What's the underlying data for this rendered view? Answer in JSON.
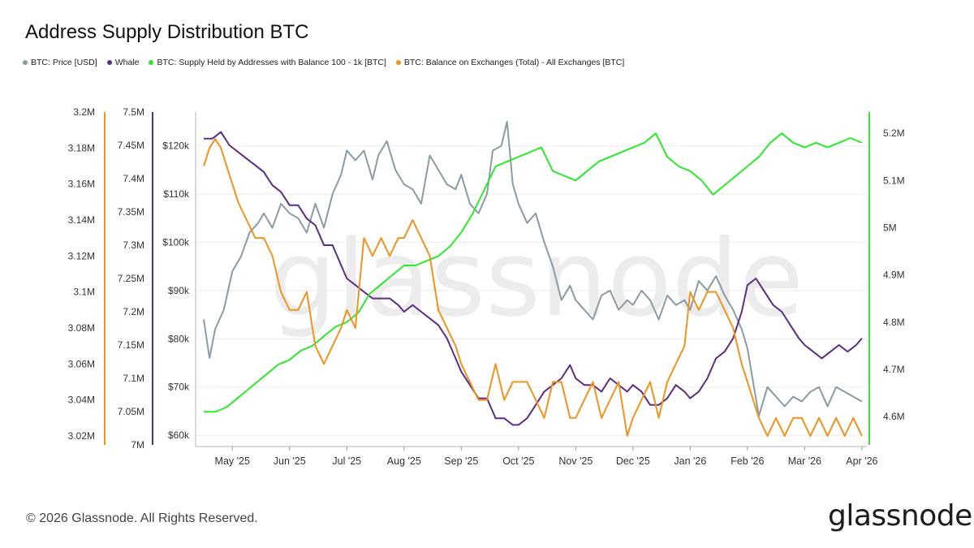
{
  "title": "Address Supply Distribution BTC",
  "footer": "© 2026 Glassnode. All Rights Reserved.",
  "brand": "glassnode",
  "watermark": "glassnode",
  "colors": {
    "price": "#8a9ba3",
    "whale": "#5b2d83",
    "supply": "#2de82d",
    "exchange": "#f0921e"
  },
  "legend": [
    {
      "label": "BTC: Price [USD]",
      "color": "#8a9ba3"
    },
    {
      "label": "Whale",
      "color": "#5b2d83"
    },
    {
      "label": "BTC: Supply Held by Addresses with Balance 100 - 1k [BTC]",
      "color": "#2de82d"
    },
    {
      "label": "BTC: Balance on Exchanges (Total) - All Exchanges [BTC]",
      "color": "#f0921e"
    }
  ],
  "chart_data": {
    "type": "line",
    "x_labels": [
      "May '25",
      "Jun '25",
      "Jul '25",
      "Aug '25",
      "Sep '25",
      "Oct '25",
      "Nov '25",
      "Dec '25",
      "Jan '26",
      "Feb '26",
      "Mar '26",
      "Apr '26"
    ],
    "x_range": [
      -0.5,
      11.03
    ],
    "axes": {
      "exchange": {
        "range": [
          3.015,
          3.2
        ],
        "ticks": [
          "3.02M",
          "3.04M",
          "3.06M",
          "3.08M",
          "3.1M",
          "3.12M",
          "3.14M",
          "3.16M",
          "3.18M",
          "3.2M"
        ],
        "tick_values": [
          3.02,
          3.04,
          3.06,
          3.08,
          3.1,
          3.12,
          3.14,
          3.16,
          3.18,
          3.2
        ]
      },
      "whale": {
        "range": [
          7.0,
          7.5
        ],
        "ticks": [
          "7M",
          "7.05M",
          "7.1M",
          "7.15M",
          "7.2M",
          "7.25M",
          "7.3M",
          "7.35M",
          "7.4M",
          "7.45M",
          "7.5M"
        ],
        "tick_values": [
          7.0,
          7.05,
          7.1,
          7.15,
          7.2,
          7.25,
          7.3,
          7.35,
          7.4,
          7.45,
          7.5
        ]
      },
      "price": {
        "range": [
          58,
          127
        ],
        "ticks": [
          "$60k",
          "$70k",
          "$80k",
          "$90k",
          "$100k",
          "$110k",
          "$120k"
        ],
        "tick_values": [
          60,
          70,
          80,
          90,
          100,
          110,
          120
        ]
      },
      "supply": {
        "range": [
          4.54,
          5.245
        ],
        "ticks": [
          "4.6M",
          "4.7M",
          "4.8M",
          "4.9M",
          "5M",
          "5.1M",
          "5.2M"
        ],
        "tick_values": [
          4.6,
          4.7,
          4.8,
          4.9,
          5.0,
          5.1,
          5.2
        ]
      }
    },
    "series": [
      {
        "name": "BTC: Price [USD]",
        "axis": "price",
        "unit": "k USD",
        "x": [
          -0.5,
          -0.4,
          -0.3,
          -0.15,
          0,
          0.15,
          0.3,
          0.45,
          0.55,
          0.7,
          0.85,
          1,
          1.15,
          1.3,
          1.45,
          1.6,
          1.75,
          1.9,
          2,
          2.15,
          2.3,
          2.45,
          2.55,
          2.7,
          2.85,
          3,
          3.15,
          3.3,
          3.45,
          3.6,
          3.75,
          3.9,
          4,
          4.15,
          4.3,
          4.45,
          4.55,
          4.7,
          4.8,
          4.9,
          5,
          5.15,
          5.3,
          5.45,
          5.6,
          5.75,
          5.9,
          6,
          6.15,
          6.3,
          6.45,
          6.6,
          6.75,
          6.9,
          7,
          7.15,
          7.3,
          7.45,
          7.6,
          7.75,
          7.9,
          8,
          8.15,
          8.3,
          8.45,
          8.6,
          8.75,
          8.9,
          9,
          9.1,
          9.2,
          9.35,
          9.5,
          9.65,
          9.8,
          9.95,
          10.1,
          10.25,
          10.4,
          10.55,
          10.7,
          10.85,
          11
        ],
        "y": [
          84,
          76,
          82,
          86,
          94,
          97,
          102,
          104,
          106,
          103,
          108,
          106,
          105,
          102,
          108,
          103,
          110,
          114,
          119,
          117,
          119,
          113,
          118,
          121,
          115,
          112,
          111,
          108,
          118,
          115,
          112,
          111,
          114,
          108,
          106,
          110,
          119,
          120,
          125,
          112,
          108,
          104,
          106,
          100,
          95,
          88,
          91,
          88,
          86,
          84,
          89,
          90,
          86,
          88,
          87,
          90,
          88,
          84,
          89,
          87,
          88,
          86,
          92,
          90,
          93,
          89,
          86,
          82,
          78,
          71,
          64,
          70,
          68,
          66,
          68,
          67,
          69,
          70,
          66,
          70,
          69,
          68,
          67
        ]
      },
      {
        "name": "Whale",
        "axis": "whale",
        "unit": "M BTC",
        "x": [
          -0.5,
          -0.35,
          -0.2,
          -0.05,
          0.1,
          0.25,
          0.4,
          0.55,
          0.7,
          0.85,
          1,
          1.15,
          1.3,
          1.45,
          1.6,
          1.75,
          1.9,
          2,
          2.15,
          2.3,
          2.45,
          2.6,
          2.75,
          2.9,
          3,
          3.15,
          3.3,
          3.45,
          3.6,
          3.75,
          3.9,
          4,
          4.15,
          4.3,
          4.45,
          4.6,
          4.75,
          4.9,
          5,
          5.15,
          5.3,
          5.45,
          5.6,
          5.75,
          5.9,
          6,
          6.15,
          6.3,
          6.45,
          6.6,
          6.75,
          6.9,
          7,
          7.15,
          7.3,
          7.45,
          7.6,
          7.75,
          7.9,
          8,
          8.15,
          8.3,
          8.45,
          8.6,
          8.75,
          8.9,
          9,
          9.15,
          9.3,
          9.45,
          9.6,
          9.75,
          9.9,
          10,
          10.15,
          10.3,
          10.45,
          10.6,
          10.75,
          10.9,
          11
        ],
        "y": [
          7.46,
          7.46,
          7.47,
          7.45,
          7.44,
          7.43,
          7.42,
          7.41,
          7.39,
          7.38,
          7.36,
          7.36,
          7.34,
          7.33,
          7.3,
          7.3,
          7.27,
          7.25,
          7.24,
          7.23,
          7.22,
          7.22,
          7.22,
          7.21,
          7.2,
          7.21,
          7.2,
          7.19,
          7.18,
          7.16,
          7.13,
          7.11,
          7.09,
          7.07,
          7.07,
          7.04,
          7.04,
          7.03,
          7.03,
          7.04,
          7.06,
          7.08,
          7.09,
          7.1,
          7.12,
          7.1,
          7.09,
          7.09,
          7.08,
          7.1,
          7.09,
          7.08,
          7.09,
          7.08,
          7.06,
          7.06,
          7.07,
          7.09,
          7.08,
          7.07,
          7.08,
          7.1,
          7.13,
          7.14,
          7.16,
          7.2,
          7.24,
          7.25,
          7.23,
          7.21,
          7.2,
          7.18,
          7.16,
          7.15,
          7.14,
          7.13,
          7.14,
          7.15,
          7.14,
          7.15,
          7.16
        ]
      },
      {
        "name": "BTC: Supply Held by Addresses with Balance 100 - 1k [BTC]",
        "axis": "supply",
        "unit": "M BTC",
        "x": [
          -0.5,
          -0.3,
          -0.1,
          0,
          0.2,
          0.4,
          0.6,
          0.8,
          1,
          1.2,
          1.4,
          1.6,
          1.8,
          2,
          2.2,
          2.4,
          2.6,
          2.8,
          3,
          3.2,
          3.4,
          3.6,
          3.8,
          4,
          4.2,
          4.4,
          4.6,
          4.8,
          5,
          5.2,
          5.4,
          5.6,
          5.8,
          6,
          6.2,
          6.4,
          6.6,
          6.8,
          7,
          7.2,
          7.4,
          7.6,
          7.8,
          8,
          8.2,
          8.4,
          8.6,
          8.8,
          9,
          9.2,
          9.4,
          9.6,
          9.8,
          10,
          10.2,
          10.4,
          10.6,
          10.8,
          11
        ],
        "y": [
          4.61,
          4.61,
          4.62,
          4.63,
          4.65,
          4.67,
          4.69,
          4.71,
          4.72,
          4.74,
          4.75,
          4.77,
          4.79,
          4.8,
          4.82,
          4.86,
          4.88,
          4.9,
          4.92,
          4.92,
          4.93,
          4.94,
          4.96,
          4.99,
          5.03,
          5.08,
          5.13,
          5.14,
          5.15,
          5.16,
          5.17,
          5.12,
          5.11,
          5.1,
          5.12,
          5.14,
          5.15,
          5.16,
          5.17,
          5.18,
          5.2,
          5.15,
          5.13,
          5.12,
          5.1,
          5.07,
          5.09,
          5.11,
          5.13,
          5.15,
          5.18,
          5.2,
          5.18,
          5.17,
          5.18,
          5.17,
          5.18,
          5.19,
          5.18
        ]
      },
      {
        "name": "BTC: Balance on Exchanges (Total) - All Exchanges [BTC]",
        "axis": "exchange",
        "unit": "M BTC",
        "x": [
          -0.5,
          -0.4,
          -0.3,
          -0.2,
          -0.1,
          0,
          0.1,
          0.25,
          0.4,
          0.55,
          0.7,
          0.85,
          1,
          1.15,
          1.3,
          1.45,
          1.6,
          1.75,
          1.9,
          2,
          2.15,
          2.3,
          2.45,
          2.6,
          2.75,
          2.9,
          3,
          3.15,
          3.3,
          3.45,
          3.6,
          3.75,
          3.9,
          4,
          4.15,
          4.3,
          4.45,
          4.6,
          4.75,
          4.9,
          5,
          5.15,
          5.3,
          5.45,
          5.6,
          5.75,
          5.9,
          6,
          6.15,
          6.3,
          6.45,
          6.6,
          6.75,
          6.9,
          7,
          7.15,
          7.3,
          7.45,
          7.6,
          7.75,
          7.9,
          8,
          8.15,
          8.3,
          8.45,
          8.6,
          8.75,
          8.9,
          9,
          9.1,
          9.2,
          9.35,
          9.5,
          9.65,
          9.8,
          9.95,
          10.1,
          10.25,
          10.4,
          10.55,
          10.7,
          10.85,
          11
        ],
        "y": [
          3.17,
          3.18,
          3.185,
          3.18,
          3.17,
          3.16,
          3.15,
          3.14,
          3.13,
          3.13,
          3.12,
          3.1,
          3.09,
          3.09,
          3.1,
          3.07,
          3.06,
          3.07,
          3.08,
          3.09,
          3.08,
          3.13,
          3.12,
          3.13,
          3.12,
          3.13,
          3.13,
          3.14,
          3.13,
          3.12,
          3.09,
          3.08,
          3.07,
          3.06,
          3.05,
          3.04,
          3.04,
          3.06,
          3.04,
          3.05,
          3.05,
          3.05,
          3.04,
          3.03,
          3.05,
          3.05,
          3.03,
          3.03,
          3.04,
          3.05,
          3.03,
          3.04,
          3.05,
          3.02,
          3.03,
          3.04,
          3.05,
          3.03,
          3.05,
          3.06,
          3.07,
          3.1,
          3.09,
          3.1,
          3.1,
          3.09,
          3.08,
          3.06,
          3.05,
          3.04,
          3.03,
          3.02,
          3.03,
          3.02,
          3.03,
          3.03,
          3.02,
          3.03,
          3.02,
          3.03,
          3.02,
          3.03,
          3.02
        ]
      }
    ]
  }
}
